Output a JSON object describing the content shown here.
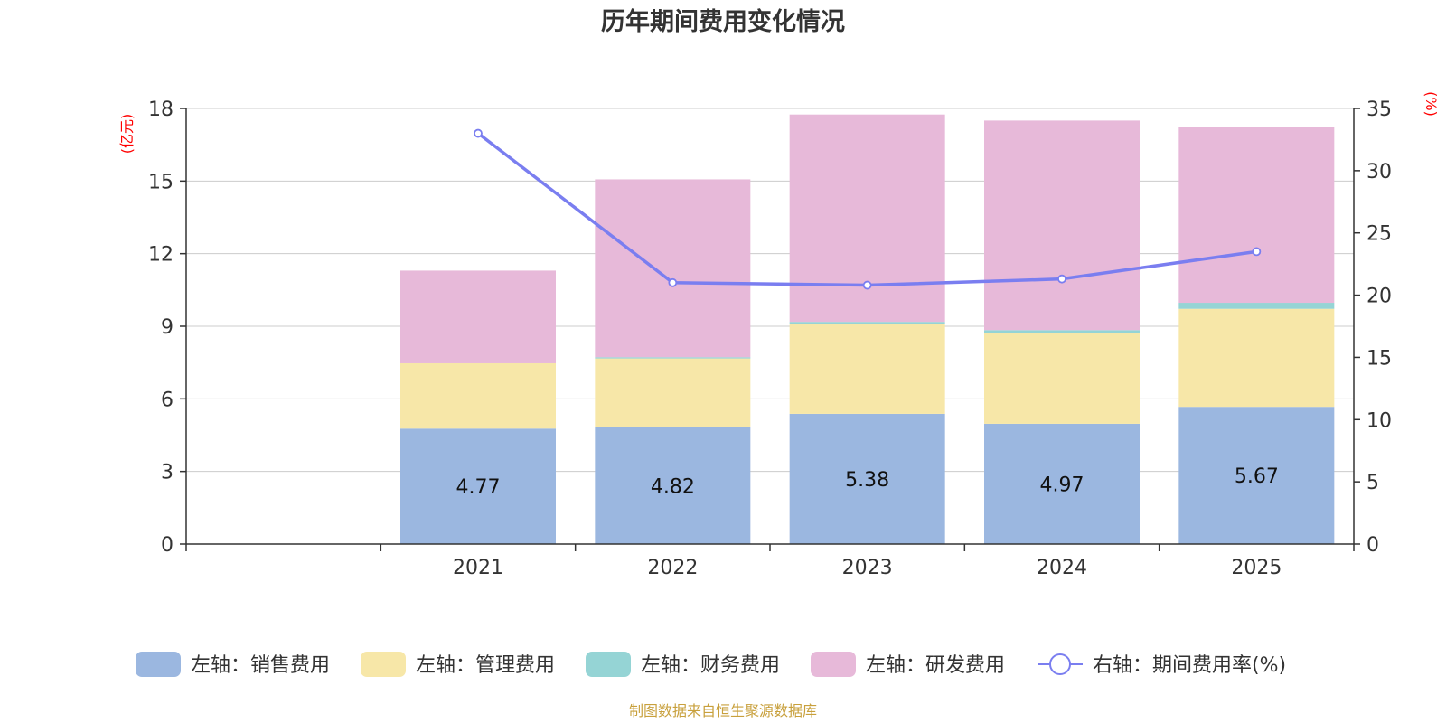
{
  "chart_data": {
    "type": "bar",
    "title": "历年期间费用变化情况",
    "categories": [
      "",
      "2021",
      "2022",
      "2023",
      "2024",
      "2025"
    ],
    "left_axis": {
      "unit": "(亿元)",
      "ylim": [
        0,
        18
      ],
      "ticks": [
        "0",
        "3",
        "6",
        "9",
        "12",
        "15",
        "18"
      ]
    },
    "right_axis": {
      "unit": "(%)",
      "ylim": [
        0,
        35
      ],
      "ticks": [
        "0",
        "5",
        "10",
        "15",
        "20",
        "25",
        "30",
        "35"
      ]
    },
    "series": [
      {
        "name": "左轴：销售费用",
        "type": "bar",
        "axis": "left",
        "color": "#9bb7e0",
        "values": [
          null,
          4.77,
          4.82,
          5.38,
          4.97,
          5.67
        ],
        "labels": [
          null,
          "4.77",
          "4.82",
          "5.38",
          "4.97",
          "5.67"
        ]
      },
      {
        "name": "左轴：管理费用",
        "type": "bar",
        "axis": "left",
        "color": "#f7e7a8",
        "values": [
          null,
          2.7,
          2.85,
          3.7,
          3.75,
          4.05
        ]
      },
      {
        "name": "左轴：财务费用",
        "type": "bar",
        "axis": "left",
        "color": "#95d4d5",
        "values": [
          null,
          0.0,
          0.05,
          0.1,
          0.12,
          0.25
        ]
      },
      {
        "name": "左轴：研发费用",
        "type": "bar",
        "axis": "left",
        "color": "#e7b9d9",
        "values": [
          null,
          3.83,
          7.35,
          8.57,
          8.66,
          7.28
        ]
      },
      {
        "name": "右轴：期间费用率(%)",
        "type": "line",
        "axis": "right",
        "color": "#7a7ef0",
        "values": [
          null,
          33.0,
          21.0,
          20.8,
          21.3,
          23.5
        ]
      }
    ],
    "source": "制图数据来自恒生聚源数据库"
  }
}
